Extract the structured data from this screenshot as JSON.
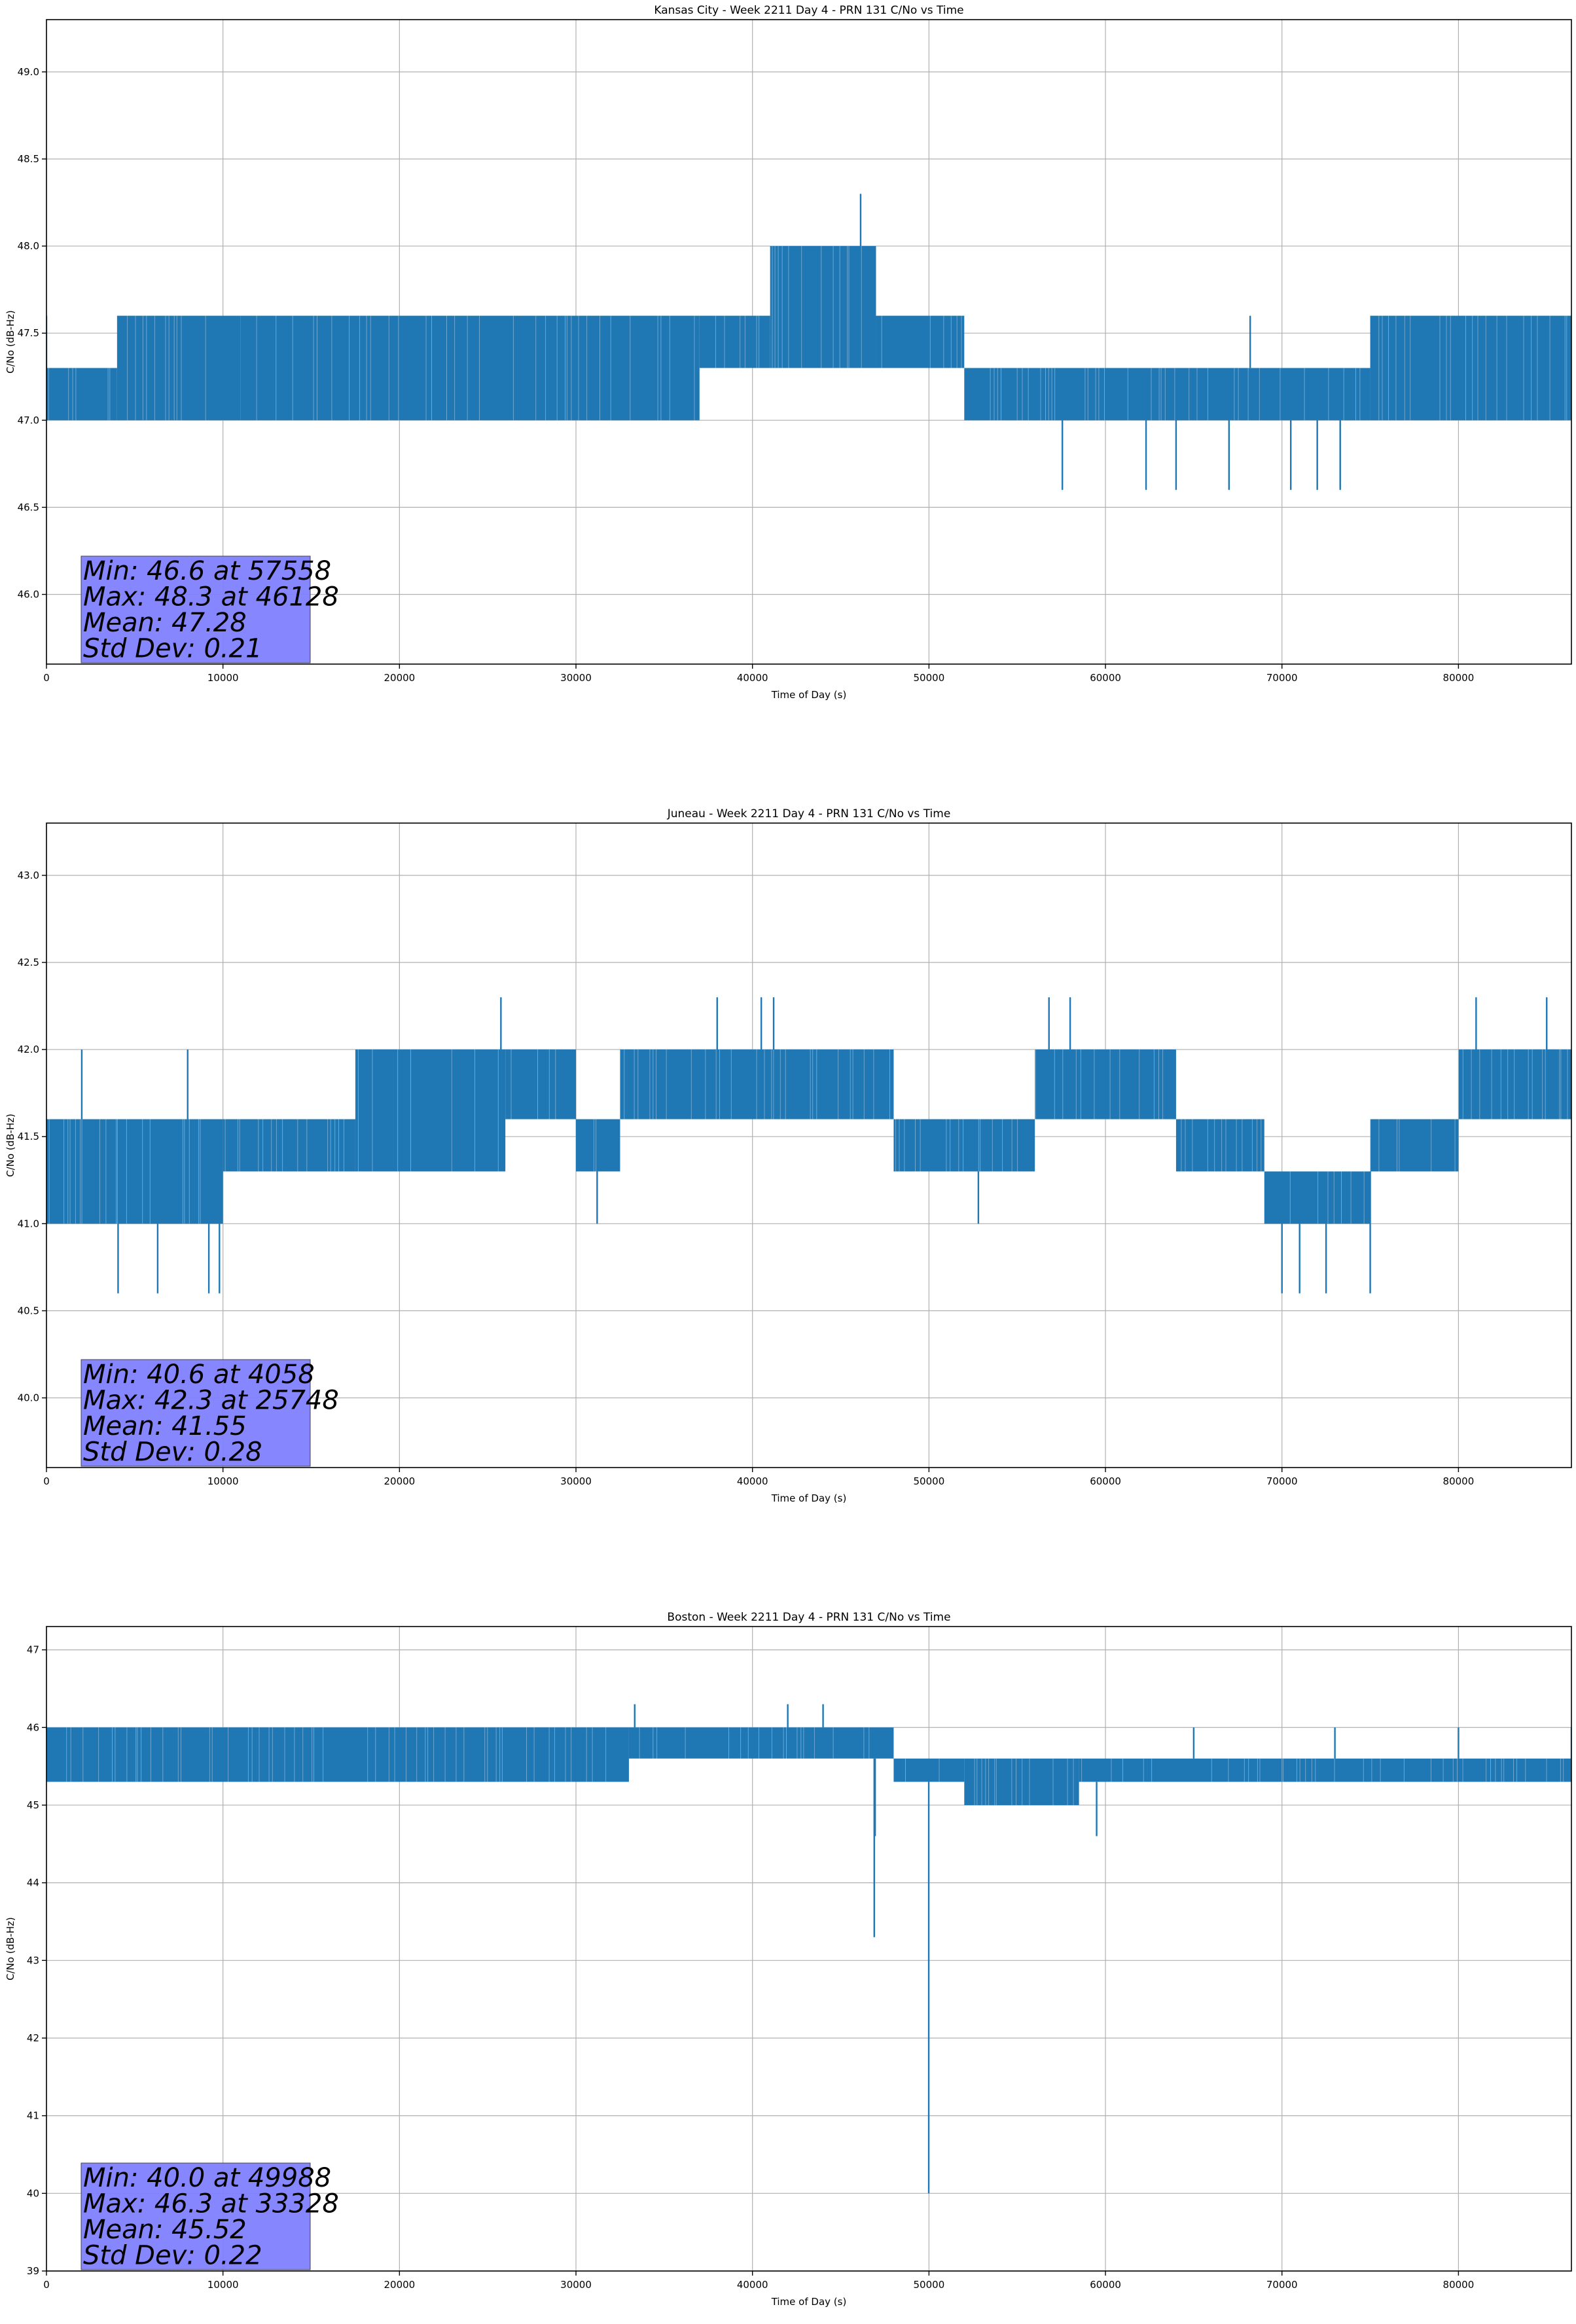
{
  "figure": {
    "background": "#ffffff",
    "line_color": "#1f77b4",
    "grid_color": "#b0b0b0",
    "stats_box_color": "#8080ff"
  },
  "chart_data": [
    {
      "type": "line",
      "title": "Kansas City - Week 2211 Day 4 - PRN 131 C/No vs Time",
      "xlabel": "Time of Day (s)",
      "ylabel": "C/No (dB-Hz)",
      "xlim": [
        0,
        86400
      ],
      "ylim": [
        45.6,
        49.3
      ],
      "xticks": [
        0,
        10000,
        20000,
        30000,
        40000,
        50000,
        60000,
        70000,
        80000
      ],
      "yticks": [
        "46.0",
        "46.5",
        "47.0",
        "47.5",
        "48.0",
        "48.5",
        "49.0"
      ],
      "grid": true,
      "stats": [
        "Min: 46.6 at 57558",
        "Max: 48.3 at 46128",
        "Mean: 47.28",
        "Std Dev: 0.21"
      ],
      "bands": [
        [
          0,
          4000,
          47.0,
          47.3
        ],
        [
          4000,
          11000,
          47.0,
          47.6
        ],
        [
          11000,
          37000,
          47.0,
          47.6
        ],
        [
          37000,
          41000,
          47.3,
          47.6
        ],
        [
          41000,
          47000,
          47.3,
          48.0
        ],
        [
          47000,
          52000,
          47.3,
          47.6
        ],
        [
          52000,
          75000,
          47.0,
          47.3
        ],
        [
          75000,
          86400,
          47.0,
          47.6
        ]
      ],
      "spikes": [
        [
          57558,
          46.6
        ],
        [
          62300,
          46.6
        ],
        [
          64000,
          46.6
        ],
        [
          67000,
          46.6
        ],
        [
          70500,
          46.6
        ],
        [
          72000,
          46.6
        ],
        [
          73300,
          46.6
        ],
        [
          46128,
          48.3
        ],
        [
          68200,
          47.6
        ],
        [
          76000,
          47.6
        ],
        [
          4200,
          47.6
        ],
        [
          0,
          47.6
        ]
      ]
    },
    {
      "type": "line",
      "title": "Juneau - Week 2211 Day 4 - PRN 131 C/No vs Time",
      "xlabel": "Time of Day (s)",
      "ylabel": "C/No (dB-Hz)",
      "xlim": [
        0,
        86400
      ],
      "ylim": [
        39.6,
        43.3
      ],
      "xticks": [
        0,
        10000,
        20000,
        30000,
        40000,
        50000,
        60000,
        70000,
        80000
      ],
      "yticks": [
        "40.0",
        "40.5",
        "41.0",
        "41.5",
        "42.0",
        "42.5",
        "43.0"
      ],
      "grid": true,
      "stats": [
        "Min: 40.6 at 4058",
        "Max: 42.3 at 25748",
        "Mean: 41.55",
        "Std Dev: 0.28"
      ],
      "bands": [
        [
          0,
          10000,
          41.0,
          41.6
        ],
        [
          10000,
          17500,
          41.3,
          41.6
        ],
        [
          17500,
          26000,
          41.3,
          42.0
        ],
        [
          26000,
          30000,
          41.6,
          42.0
        ],
        [
          30000,
          32500,
          41.3,
          41.6
        ],
        [
          32500,
          48000,
          41.6,
          42.0
        ],
        [
          48000,
          56000,
          41.3,
          41.6
        ],
        [
          56000,
          64000,
          41.6,
          42.0
        ],
        [
          64000,
          69000,
          41.3,
          41.6
        ],
        [
          69000,
          75000,
          41.0,
          41.3
        ],
        [
          75000,
          80000,
          41.3,
          41.6
        ],
        [
          80000,
          86400,
          41.6,
          42.0
        ]
      ],
      "spikes": [
        [
          4058,
          40.6
        ],
        [
          6300,
          40.6
        ],
        [
          9200,
          40.6
        ],
        [
          9800,
          40.6
        ],
        [
          70000,
          40.6
        ],
        [
          71000,
          40.6
        ],
        [
          72500,
          40.6
        ],
        [
          75000,
          40.6
        ],
        [
          25748,
          42.3
        ],
        [
          38000,
          42.3
        ],
        [
          40500,
          42.3
        ],
        [
          41200,
          42.3
        ],
        [
          56800,
          42.3
        ],
        [
          58000,
          42.3
        ],
        [
          81000,
          42.3
        ],
        [
          85000,
          42.3
        ],
        [
          2000,
          42.0
        ],
        [
          8000,
          42.0
        ],
        [
          31200,
          41.0
        ],
        [
          52800,
          41.0
        ]
      ]
    },
    {
      "type": "line",
      "title": "Boston - Week 2211 Day 4 - PRN 131 C/No vs Time",
      "xlabel": "Time of Day (s)",
      "ylabel": "C/No (dB-Hz)",
      "xlim": [
        0,
        86400
      ],
      "ylim": [
        39,
        47.3
      ],
      "xticks": [
        0,
        10000,
        20000,
        30000,
        40000,
        50000,
        60000,
        70000,
        80000
      ],
      "yticks": [
        "39",
        "40",
        "41",
        "42",
        "43",
        "44",
        "45",
        "46",
        "47"
      ],
      "grid": true,
      "stats": [
        "Min: 40.0 at 49988",
        "Max: 46.3 at 33328",
        "Mean: 45.52",
        "Std Dev: 0.22"
      ],
      "bands": [
        [
          0,
          33000,
          45.3,
          46.0
        ],
        [
          33000,
          48000,
          45.6,
          46.0
        ],
        [
          48000,
          52000,
          45.3,
          45.6
        ],
        [
          52000,
          58500,
          45.0,
          45.6
        ],
        [
          58500,
          86400,
          45.3,
          45.6
        ]
      ],
      "spikes": [
        [
          49988,
          40.0
        ],
        [
          46900,
          43.3
        ],
        [
          46950,
          44.6
        ],
        [
          59500,
          44.6
        ],
        [
          33328,
          46.3
        ],
        [
          42000,
          46.3
        ],
        [
          44000,
          46.3
        ],
        [
          65000,
          46.0
        ],
        [
          73000,
          46.0
        ],
        [
          80000,
          46.0
        ],
        [
          86400,
          46.0
        ]
      ]
    }
  ]
}
